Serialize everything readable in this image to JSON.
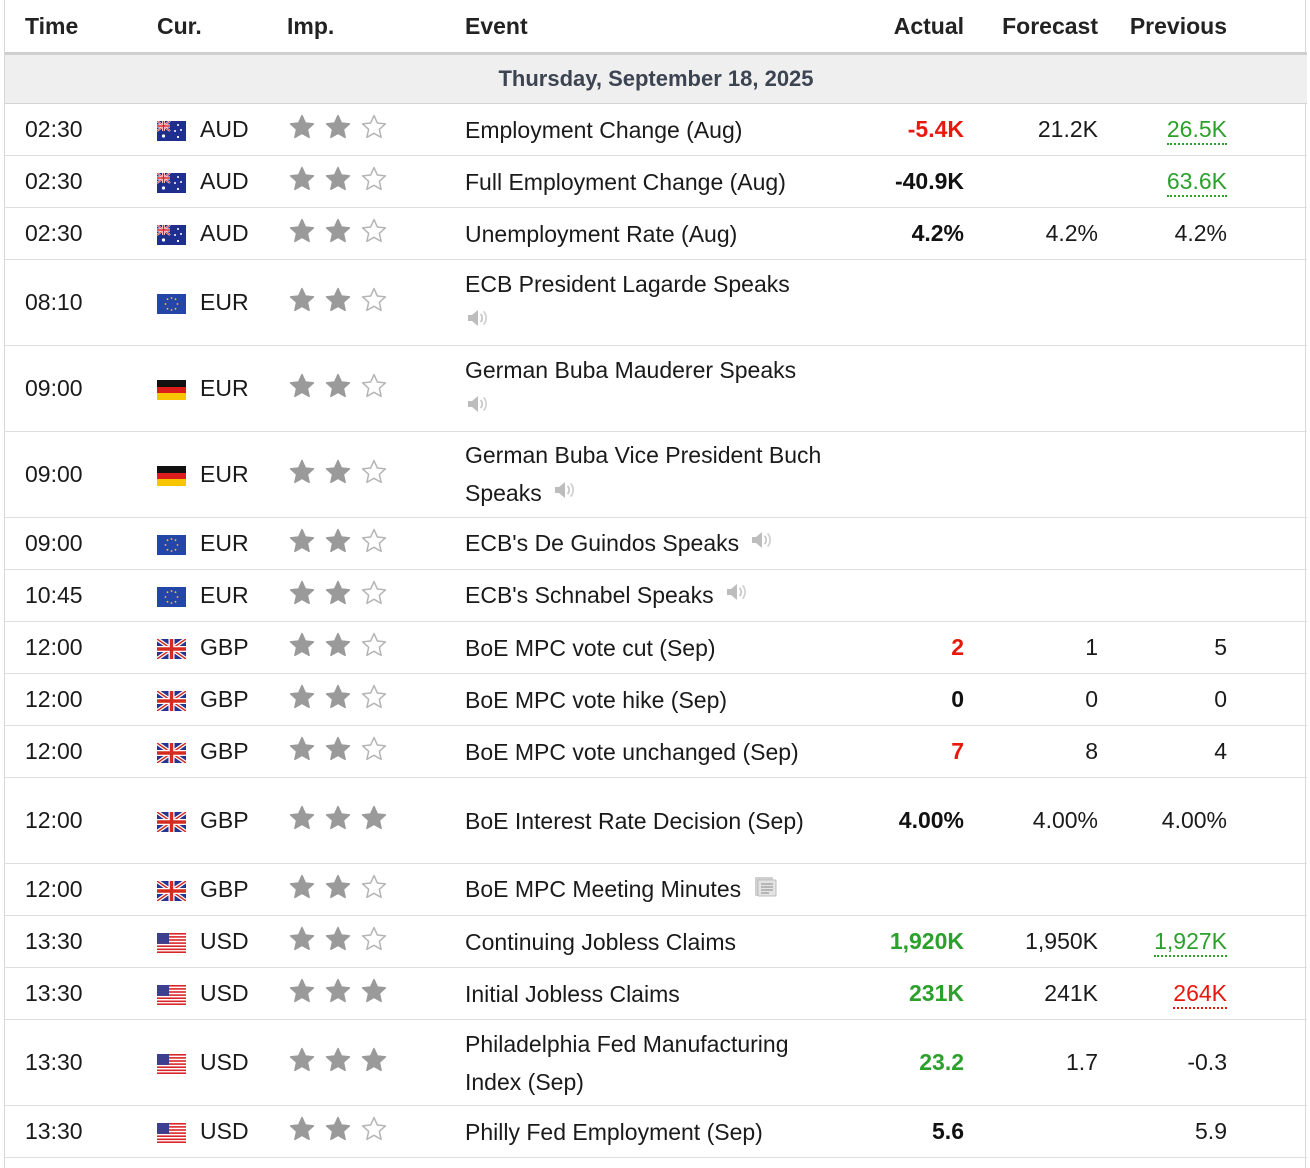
{
  "header": {
    "time": "Time",
    "cur": "Cur.",
    "imp": "Imp.",
    "event": "Event",
    "actual": "Actual",
    "forecast": "Forecast",
    "previous": "Previous"
  },
  "date_label": "Thursday, September 18, 2025",
  "colors": {
    "red": "#e8180c",
    "green": "#2ca02c",
    "date_bg": "#efefef"
  },
  "rows": [
    {
      "time": "02:30",
      "flag": "au-flag",
      "cur": "AUD",
      "imp": 2,
      "event": "Employment Change (Aug)",
      "icon": "",
      "actual": "-5.4K",
      "actual_color": "red",
      "forecast": "21.2K",
      "previous": "26.5K",
      "previous_color": "green",
      "tall": false
    },
    {
      "time": "02:30",
      "flag": "au-flag",
      "cur": "AUD",
      "imp": 2,
      "event": "Full Employment Change (Aug)",
      "icon": "",
      "actual": "-40.9K",
      "actual_color": "black",
      "forecast": "",
      "previous": "63.6K",
      "previous_color": "green",
      "tall": false
    },
    {
      "time": "02:30",
      "flag": "au-flag",
      "cur": "AUD",
      "imp": 2,
      "event": "Unemployment Rate (Aug)",
      "icon": "",
      "actual": "4.2%",
      "actual_color": "black",
      "forecast": "4.2%",
      "previous": "4.2%",
      "previous_color": "",
      "tall": false
    },
    {
      "time": "08:10",
      "flag": "eu-flag",
      "cur": "EUR",
      "imp": 2,
      "event": "ECB President Lagarde Speaks",
      "icon": "speaker",
      "icon_break": true,
      "actual": "",
      "actual_color": "",
      "forecast": "",
      "previous": "",
      "previous_color": "",
      "tall": true
    },
    {
      "time": "09:00",
      "flag": "de-flag",
      "cur": "EUR",
      "imp": 2,
      "event": "German Buba Mauderer Speaks",
      "icon": "speaker",
      "icon_break": true,
      "actual": "",
      "actual_color": "",
      "forecast": "",
      "previous": "",
      "previous_color": "",
      "tall": true
    },
    {
      "time": "09:00",
      "flag": "de-flag",
      "cur": "EUR",
      "imp": 2,
      "event": "German Buba Vice President Buch Speaks",
      "icon": "speaker",
      "icon_break": false,
      "actual": "",
      "actual_color": "",
      "forecast": "",
      "previous": "",
      "previous_color": "",
      "tall": true
    },
    {
      "time": "09:00",
      "flag": "eu-flag",
      "cur": "EUR",
      "imp": 2,
      "event": "ECB's De Guindos Speaks",
      "icon": "speaker",
      "actual": "",
      "actual_color": "",
      "forecast": "",
      "previous": "",
      "previous_color": "",
      "tall": false
    },
    {
      "time": "10:45",
      "flag": "eu-flag",
      "cur": "EUR",
      "imp": 2,
      "event": "ECB's Schnabel Speaks",
      "icon": "speaker",
      "actual": "",
      "actual_color": "",
      "forecast": "",
      "previous": "",
      "previous_color": "",
      "tall": false
    },
    {
      "time": "12:00",
      "flag": "gb-flag",
      "cur": "GBP",
      "imp": 2,
      "event": "BoE MPC vote cut (Sep)",
      "icon": "",
      "actual": "2",
      "actual_color": "red",
      "forecast": "1",
      "previous": "5",
      "previous_color": "",
      "tall": false
    },
    {
      "time": "12:00",
      "flag": "gb-flag",
      "cur": "GBP",
      "imp": 2,
      "event": "BoE MPC vote hike (Sep)",
      "icon": "",
      "actual": "0",
      "actual_color": "black",
      "forecast": "0",
      "previous": "0",
      "previous_color": "",
      "tall": false
    },
    {
      "time": "12:00",
      "flag": "gb-flag",
      "cur": "GBP",
      "imp": 2,
      "event": "BoE MPC vote unchanged (Sep)",
      "icon": "",
      "actual": "7",
      "actual_color": "red",
      "forecast": "8",
      "previous": "4",
      "previous_color": "",
      "tall": false
    },
    {
      "time": "12:00",
      "flag": "gb-flag",
      "cur": "GBP",
      "imp": 3,
      "event": "BoE Interest Rate Decision (Sep)",
      "icon": "",
      "actual": "4.00%",
      "actual_color": "black",
      "forecast": "4.00%",
      "previous": "4.00%",
      "previous_color": "",
      "tall": true
    },
    {
      "time": "12:00",
      "flag": "gb-flag",
      "cur": "GBP",
      "imp": 2,
      "event": "BoE MPC Meeting Minutes",
      "icon": "document",
      "actual": "",
      "actual_color": "",
      "forecast": "",
      "previous": "",
      "previous_color": "",
      "tall": false
    },
    {
      "time": "13:30",
      "flag": "us-flag",
      "cur": "USD",
      "imp": 2,
      "event": "Continuing Jobless Claims",
      "icon": "",
      "actual": "1,920K",
      "actual_color": "green",
      "forecast": "1,950K",
      "previous": "1,927K",
      "previous_color": "green",
      "tall": false
    },
    {
      "time": "13:30",
      "flag": "us-flag",
      "cur": "USD",
      "imp": 3,
      "event": "Initial Jobless Claims",
      "icon": "",
      "actual": "231K",
      "actual_color": "green",
      "forecast": "241K",
      "previous": "264K",
      "previous_color": "red",
      "tall": false
    },
    {
      "time": "13:30",
      "flag": "us-flag",
      "cur": "USD",
      "imp": 3,
      "event": "Philadelphia Fed Manufacturing Index (Sep)",
      "icon": "",
      "actual": "23.2",
      "actual_color": "green",
      "forecast": "1.7",
      "previous": "-0.3",
      "previous_color": "",
      "tall": true
    },
    {
      "time": "13:30",
      "flag": "us-flag",
      "cur": "USD",
      "imp": 2,
      "event": "Philly Fed Employment (Sep)",
      "icon": "",
      "actual": "5.6",
      "actual_color": "black",
      "forecast": "",
      "previous": "5.9",
      "previous_color": "",
      "tall": false
    }
  ]
}
